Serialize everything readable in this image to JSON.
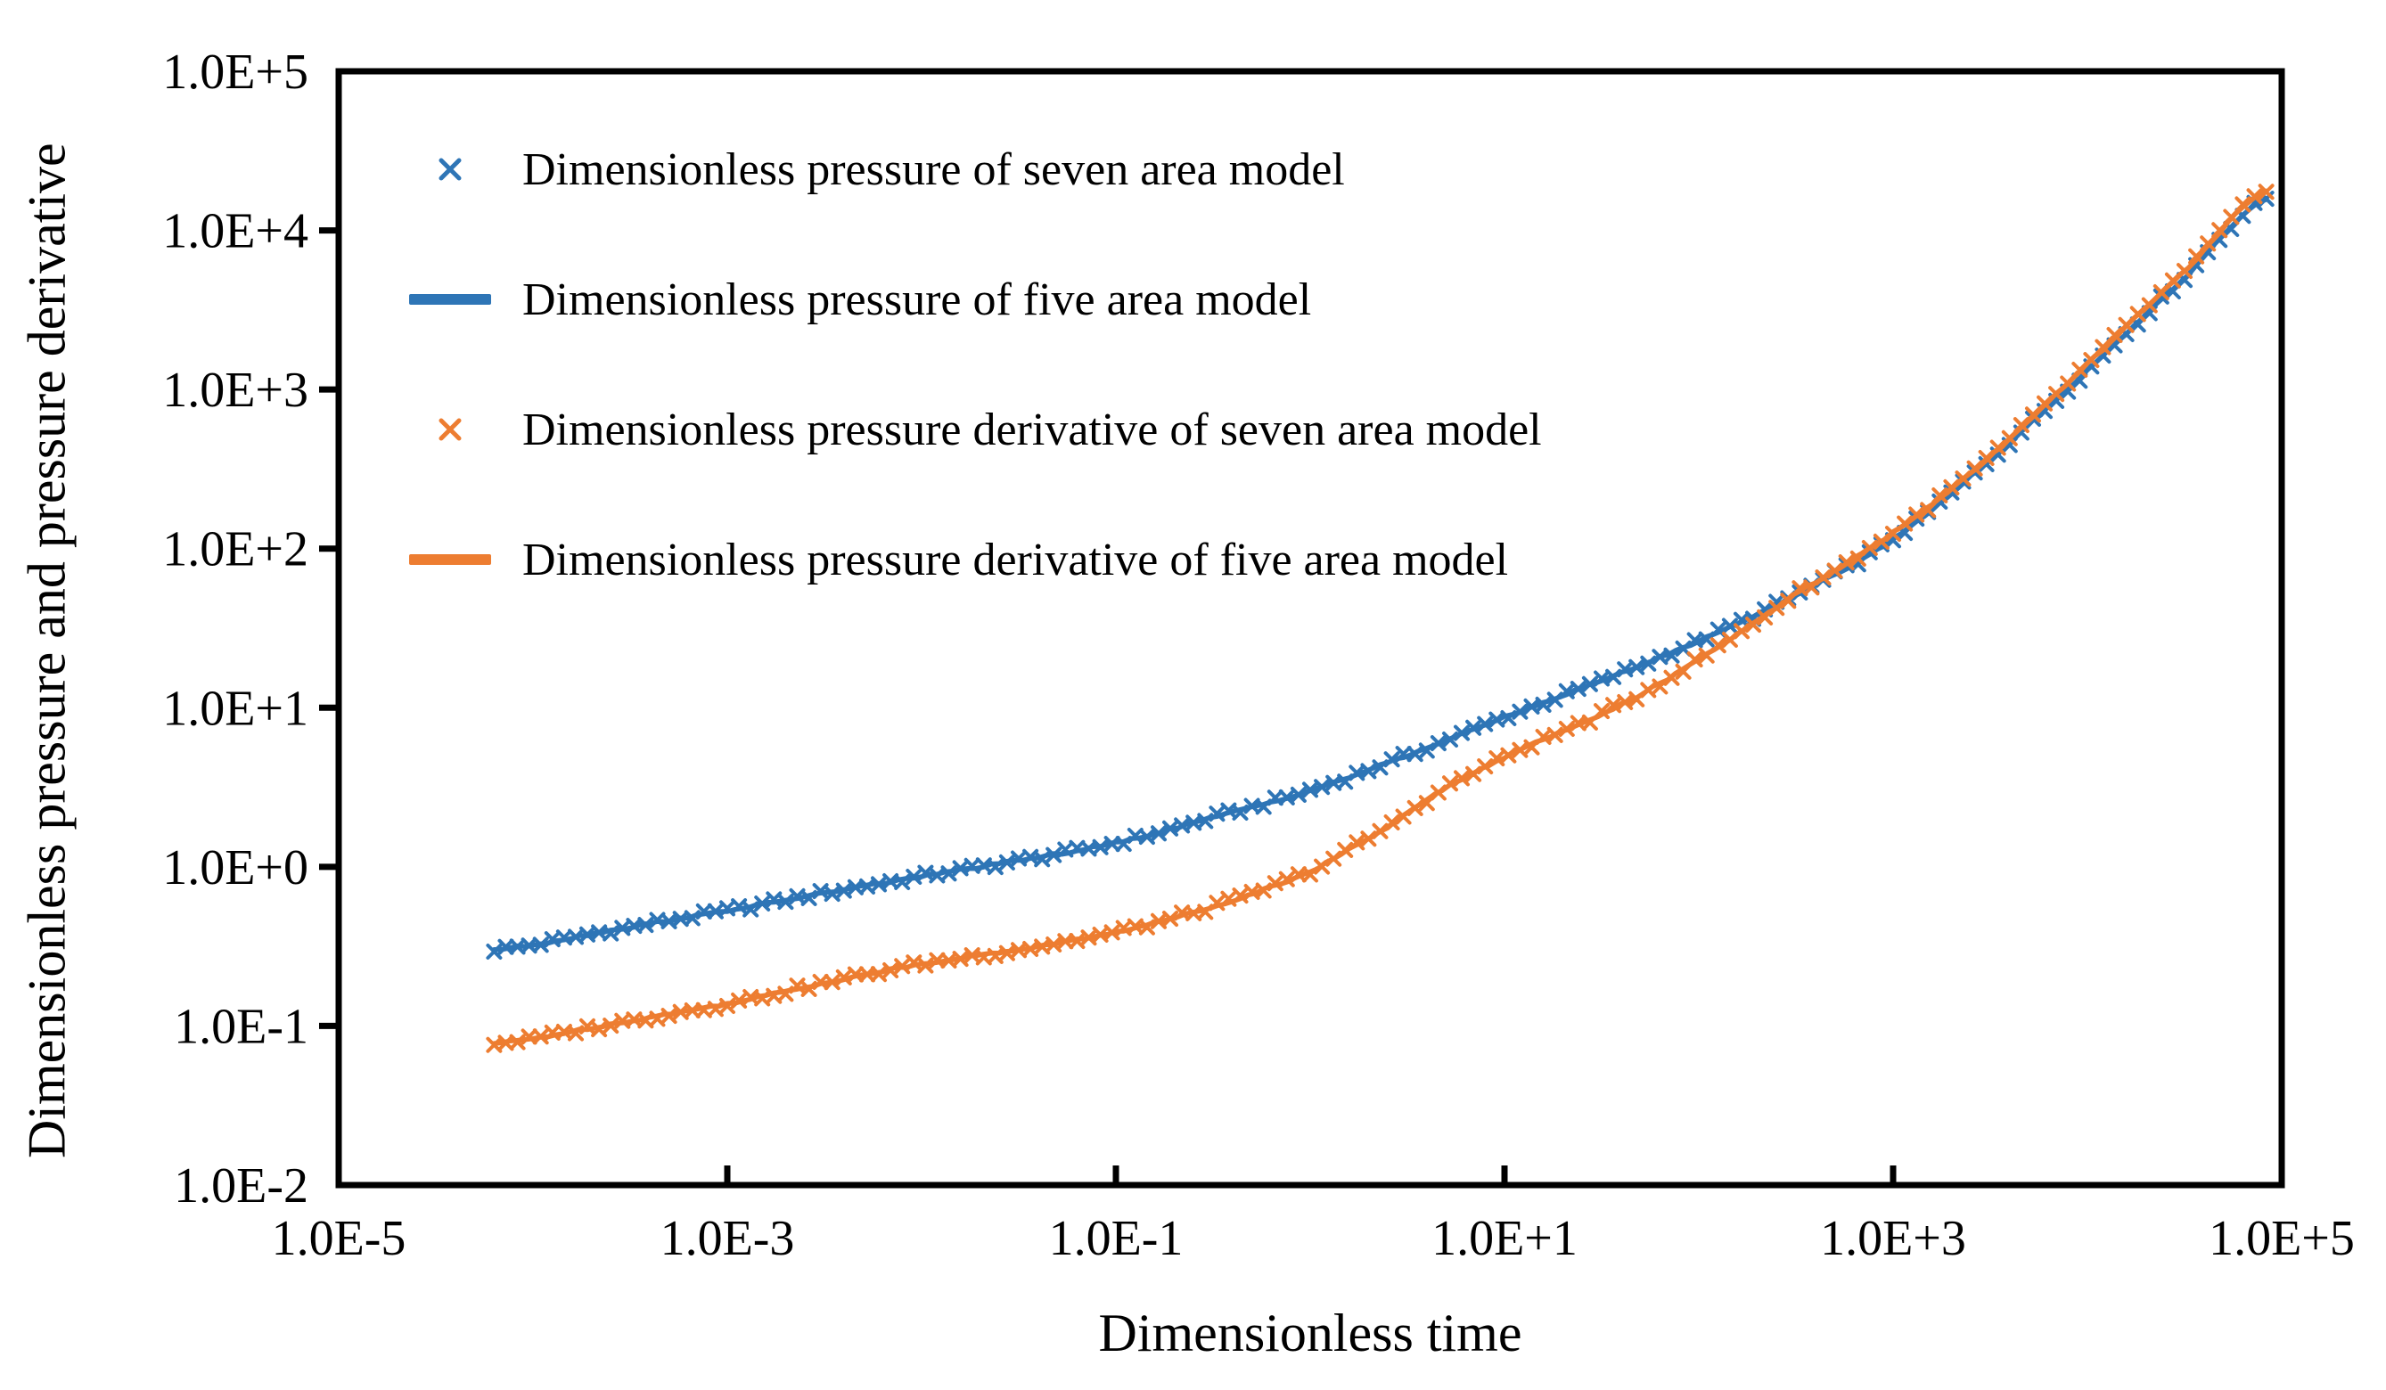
{
  "chart_data": {
    "type": "line+scatter",
    "title": "",
    "xlabel": "Dimensionless time",
    "ylabel": "Dimensionless pressure and pressure derivative",
    "x_scale": "log",
    "y_scale": "log",
    "xlim_log10": [
      -5,
      5
    ],
    "ylim_log10": [
      -2,
      5
    ],
    "grid": false,
    "legend_position": "top-left-inside",
    "x_ticks": [
      {
        "label": "1.0E-5",
        "log10": -5
      },
      {
        "label": "1.0E-3",
        "log10": -3
      },
      {
        "label": "1.0E-1",
        "log10": -1
      },
      {
        "label": "1.0E+1",
        "log10": 1
      },
      {
        "label": "1.0E+3",
        "log10": 3
      },
      {
        "label": "1.0E+5",
        "log10": 5
      }
    ],
    "y_ticks": [
      {
        "label": "1.0E+5",
        "log10": 5
      },
      {
        "label": "1.0E+4",
        "log10": 4
      },
      {
        "label": "1.0E+3",
        "log10": 3
      },
      {
        "label": "1.0E+2",
        "log10": 2
      },
      {
        "label": "1.0E+1",
        "log10": 1
      },
      {
        "label": "1.0E+0",
        "log10": 0
      },
      {
        "label": "1.0E-1",
        "log10": -1
      },
      {
        "label": "1.0E-2",
        "log10": -2
      }
    ],
    "anchors_log10": {
      "pressure": [
        [
          -4.2,
          -0.52
        ],
        [
          -3.5,
          -0.38
        ],
        [
          -3.0,
          -0.275
        ],
        [
          -2.5,
          -0.165
        ],
        [
          -2.0,
          -0.06
        ],
        [
          -1.5,
          0.04
        ],
        [
          -1.0,
          0.15
        ],
        [
          -0.5,
          0.31
        ],
        [
          0.0,
          0.48
        ],
        [
          0.5,
          0.7
        ],
        [
          1.0,
          0.94
        ],
        [
          1.5,
          1.17
        ],
        [
          2.0,
          1.42
        ],
        [
          2.5,
          1.71
        ],
        [
          3.0,
          2.06
        ],
        [
          3.5,
          2.56
        ],
        [
          4.0,
          3.12
        ],
        [
          4.5,
          3.7
        ],
        [
          4.92,
          4.2
        ]
      ],
      "derivative": [
        [
          -4.2,
          -1.11
        ],
        [
          -3.5,
          -0.97
        ],
        [
          -3.0,
          -0.86
        ],
        [
          -2.5,
          -0.73
        ],
        [
          -2.0,
          -0.61
        ],
        [
          -1.5,
          -0.52
        ],
        [
          -1.0,
          -0.41
        ],
        [
          -0.5,
          -0.25
        ],
        [
          0.0,
          -0.03
        ],
        [
          0.4,
          0.25
        ],
        [
          0.7,
          0.5
        ],
        [
          1.05,
          0.72
        ],
        [
          1.45,
          0.93
        ],
        [
          1.75,
          1.12
        ],
        [
          2.15,
          1.42
        ],
        [
          2.5,
          1.72
        ],
        [
          3.0,
          2.1
        ],
        [
          3.5,
          2.58
        ],
        [
          4.0,
          3.16
        ],
        [
          4.5,
          3.74
        ],
        [
          4.92,
          4.25
        ]
      ]
    },
    "marker_step_decades": 0.06,
    "jitter_decades": 0.02,
    "series": [
      {
        "name": "Dimensionless pressure of seven area model",
        "quantity": "pressure",
        "style": "scatter",
        "marker": "x",
        "color": "#2E75B6"
      },
      {
        "name": "Dimensionless pressure of five area model",
        "quantity": "pressure",
        "style": "line",
        "marker": "line",
        "color": "#2E75B6"
      },
      {
        "name": "Dimensionless pressure derivative of seven area model",
        "quantity": "derivative",
        "style": "scatter",
        "marker": "x",
        "color": "#ED7D31"
      },
      {
        "name": "Dimensionless pressure derivative of five area model",
        "quantity": "derivative",
        "style": "line",
        "marker": "line",
        "color": "#ED7D31"
      }
    ],
    "axis_color": "#000000"
  }
}
